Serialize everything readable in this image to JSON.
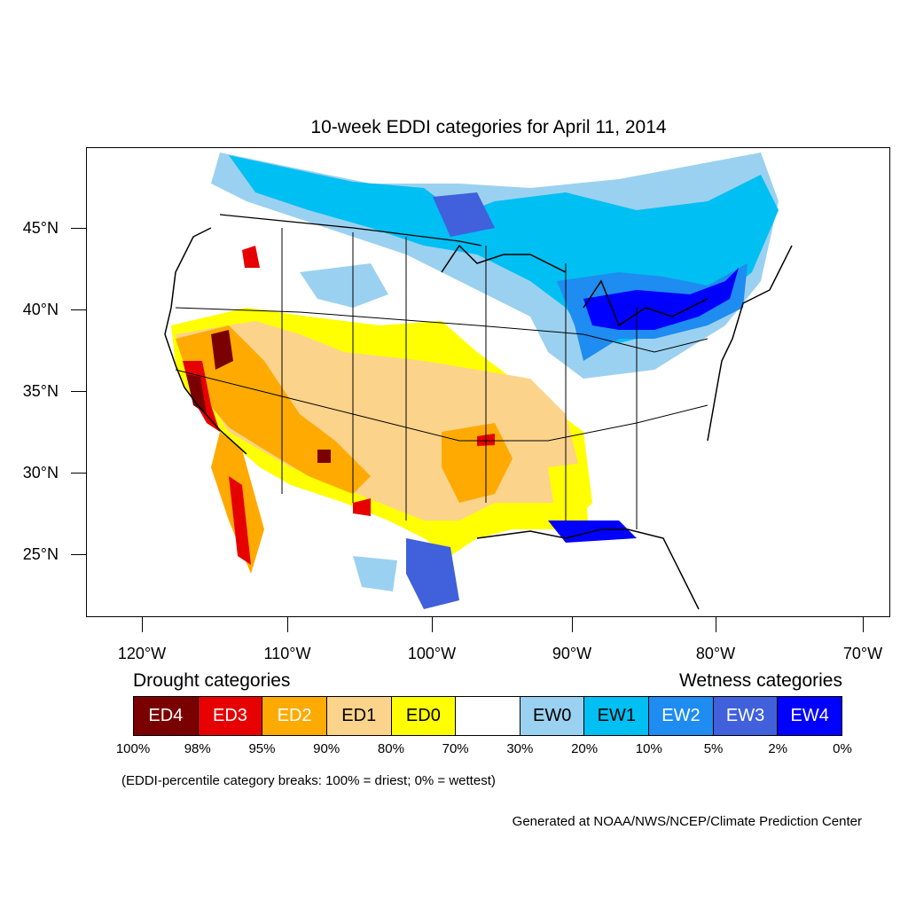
{
  "title": "10-week EDDI categories for April 11, 2014",
  "lat_labels": [
    "45°N",
    "40°N",
    "35°N",
    "30°N",
    "25°N"
  ],
  "lon_labels": [
    "120°W",
    "110°W",
    "100°W",
    "90°W",
    "80°W",
    "70°W"
  ],
  "legend": {
    "drought_heading": "Drought categories",
    "wetness_heading": "Wetness categories",
    "categories": [
      {
        "label": "ED4",
        "color": "#7a0000",
        "text_color": "#ffffff"
      },
      {
        "label": "ED3",
        "color": "#e60000",
        "text_color": "#ffffff"
      },
      {
        "label": "ED2",
        "color": "#ffaa00",
        "text_color": "#ffffff"
      },
      {
        "label": "ED1",
        "color": "#fcd38a",
        "text_color": "#000000"
      },
      {
        "label": "ED0",
        "color": "#ffff00",
        "text_color": "#000000"
      },
      {
        "label": "",
        "color": "#ffffff",
        "text_color": "#000000"
      },
      {
        "label": "EW0",
        "color": "#9bd1f0",
        "text_color": "#000000"
      },
      {
        "label": "EW1",
        "color": "#00bff3",
        "text_color": "#000000"
      },
      {
        "label": "EW2",
        "color": "#1e8cf0",
        "text_color": "#ffffff"
      },
      {
        "label": "EW3",
        "color": "#4060dc",
        "text_color": "#ffffff"
      },
      {
        "label": "EW4",
        "color": "#0000ff",
        "text_color": "#ffffff"
      }
    ],
    "breaks": [
      "100%",
      "98%",
      "95%",
      "90%",
      "80%",
      "70%",
      "30%",
      "20%",
      "10%",
      "5%",
      "2%",
      "0%"
    ]
  },
  "note": "(EDDI-percentile category breaks: 100% = driest; 0% = wettest)",
  "credit": "Generated at NOAA/NWS/NCEP/Climate Prediction Center"
}
